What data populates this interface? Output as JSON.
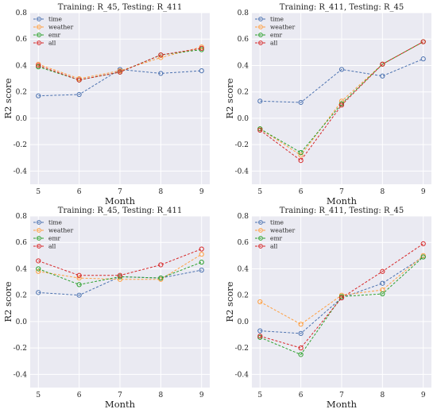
{
  "chart_data": [
    {
      "type": "line",
      "title": "Training: R_45, Testing: R_411",
      "xlabel": "Month",
      "ylabel": "R2 score",
      "x": [
        5,
        6,
        7,
        8,
        9
      ],
      "xlim": [
        4.8,
        9.2
      ],
      "ylim": [
        -0.5,
        0.8
      ],
      "yticks": [
        -0.4,
        -0.2,
        0.0,
        0.2,
        0.4,
        0.6,
        0.8
      ],
      "grid": true,
      "legend": "top-left",
      "series": [
        {
          "name": "time",
          "color": "#4c72b0",
          "values": [
            0.17,
            0.18,
            0.37,
            0.34,
            0.36
          ]
        },
        {
          "name": "weather",
          "color": "#ff9f40",
          "values": [
            0.41,
            0.3,
            0.36,
            0.46,
            0.54
          ]
        },
        {
          "name": "emr",
          "color": "#2ca02c",
          "values": [
            0.39,
            0.29,
            0.35,
            0.48,
            0.52
          ]
        },
        {
          "name": "all",
          "color": "#d62728",
          "values": [
            0.4,
            0.29,
            0.35,
            0.48,
            0.53
          ]
        }
      ]
    },
    {
      "type": "line",
      "title": "Training: R_411, Testing: R_45",
      "xlabel": "Month",
      "ylabel": "R2 score",
      "x": [
        5,
        6,
        7,
        8,
        9
      ],
      "xlim": [
        4.8,
        9.2
      ],
      "ylim": [
        -0.5,
        0.8
      ],
      "yticks": [
        -0.4,
        -0.2,
        0.0,
        0.2,
        0.4,
        0.6,
        0.8
      ],
      "grid": true,
      "legend": "top-left",
      "series": [
        {
          "name": "time",
          "color": "#4c72b0",
          "values": [
            0.13,
            0.12,
            0.37,
            0.32,
            0.45
          ]
        },
        {
          "name": "weather",
          "color": "#ff9f40",
          "values": [
            -0.08,
            -0.28,
            0.13,
            0.41,
            0.58
          ]
        },
        {
          "name": "emr",
          "color": "#2ca02c",
          "values": [
            -0.08,
            -0.26,
            0.11,
            0.41,
            0.58
          ]
        },
        {
          "name": "all",
          "color": "#d62728",
          "values": [
            -0.09,
            -0.32,
            0.1,
            0.41,
            0.58
          ]
        }
      ]
    },
    {
      "type": "line",
      "title": "Training: R_45, Testing: R_411",
      "xlabel": "Month",
      "ylabel": "R2 score",
      "x": [
        5,
        6,
        7,
        8,
        9
      ],
      "xlim": [
        4.8,
        9.2
      ],
      "ylim": [
        -0.5,
        0.8
      ],
      "yticks": [
        -0.4,
        -0.2,
        0.0,
        0.2,
        0.4,
        0.6,
        0.8
      ],
      "grid": true,
      "legend": "top-left",
      "series": [
        {
          "name": "time",
          "color": "#4c72b0",
          "values": [
            0.22,
            0.2,
            0.34,
            0.33,
            0.39
          ]
        },
        {
          "name": "weather",
          "color": "#ff9f40",
          "values": [
            0.38,
            0.33,
            0.32,
            0.32,
            0.51
          ]
        },
        {
          "name": "emr",
          "color": "#2ca02c",
          "values": [
            0.4,
            0.28,
            0.34,
            0.33,
            0.45
          ]
        },
        {
          "name": "all",
          "color": "#d62728",
          "values": [
            0.46,
            0.35,
            0.35,
            0.43,
            0.55
          ]
        }
      ]
    },
    {
      "type": "line",
      "title": "Training: R_411, Testing: R_45",
      "xlabel": "Month",
      "ylabel": "R2 score",
      "x": [
        5,
        6,
        7,
        8,
        9
      ],
      "xlim": [
        4.8,
        9.2
      ],
      "ylim": [
        -0.5,
        0.8
      ],
      "yticks": [
        -0.4,
        -0.2,
        0.0,
        0.2,
        0.4,
        0.6,
        0.8
      ],
      "grid": true,
      "legend": "top-left",
      "series": [
        {
          "name": "time",
          "color": "#4c72b0",
          "values": [
            -0.07,
            -0.09,
            0.18,
            0.29,
            0.49
          ]
        },
        {
          "name": "weather",
          "color": "#ff9f40",
          "values": [
            0.15,
            -0.02,
            0.2,
            0.24,
            0.5
          ]
        },
        {
          "name": "emr",
          "color": "#2ca02c",
          "values": [
            -0.12,
            -0.25,
            0.19,
            0.21,
            0.49
          ]
        },
        {
          "name": "all",
          "color": "#d62728",
          "values": [
            -0.11,
            -0.2,
            0.18,
            0.38,
            0.59
          ]
        }
      ]
    }
  ]
}
